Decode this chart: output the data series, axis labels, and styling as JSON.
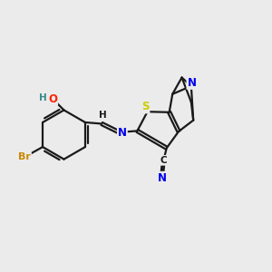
{
  "background_color": "#ebebeb",
  "bond_color": "#1a1a1a",
  "bond_width": 1.6,
  "atom_colors": {
    "N": "#0000ee",
    "O": "#ff2200",
    "S": "#cccc00",
    "Br": "#cc8800",
    "HO": "#3a8a8a",
    "C": "#1a1a1a"
  },
  "figsize": [
    3.0,
    3.0
  ],
  "dpi": 100
}
